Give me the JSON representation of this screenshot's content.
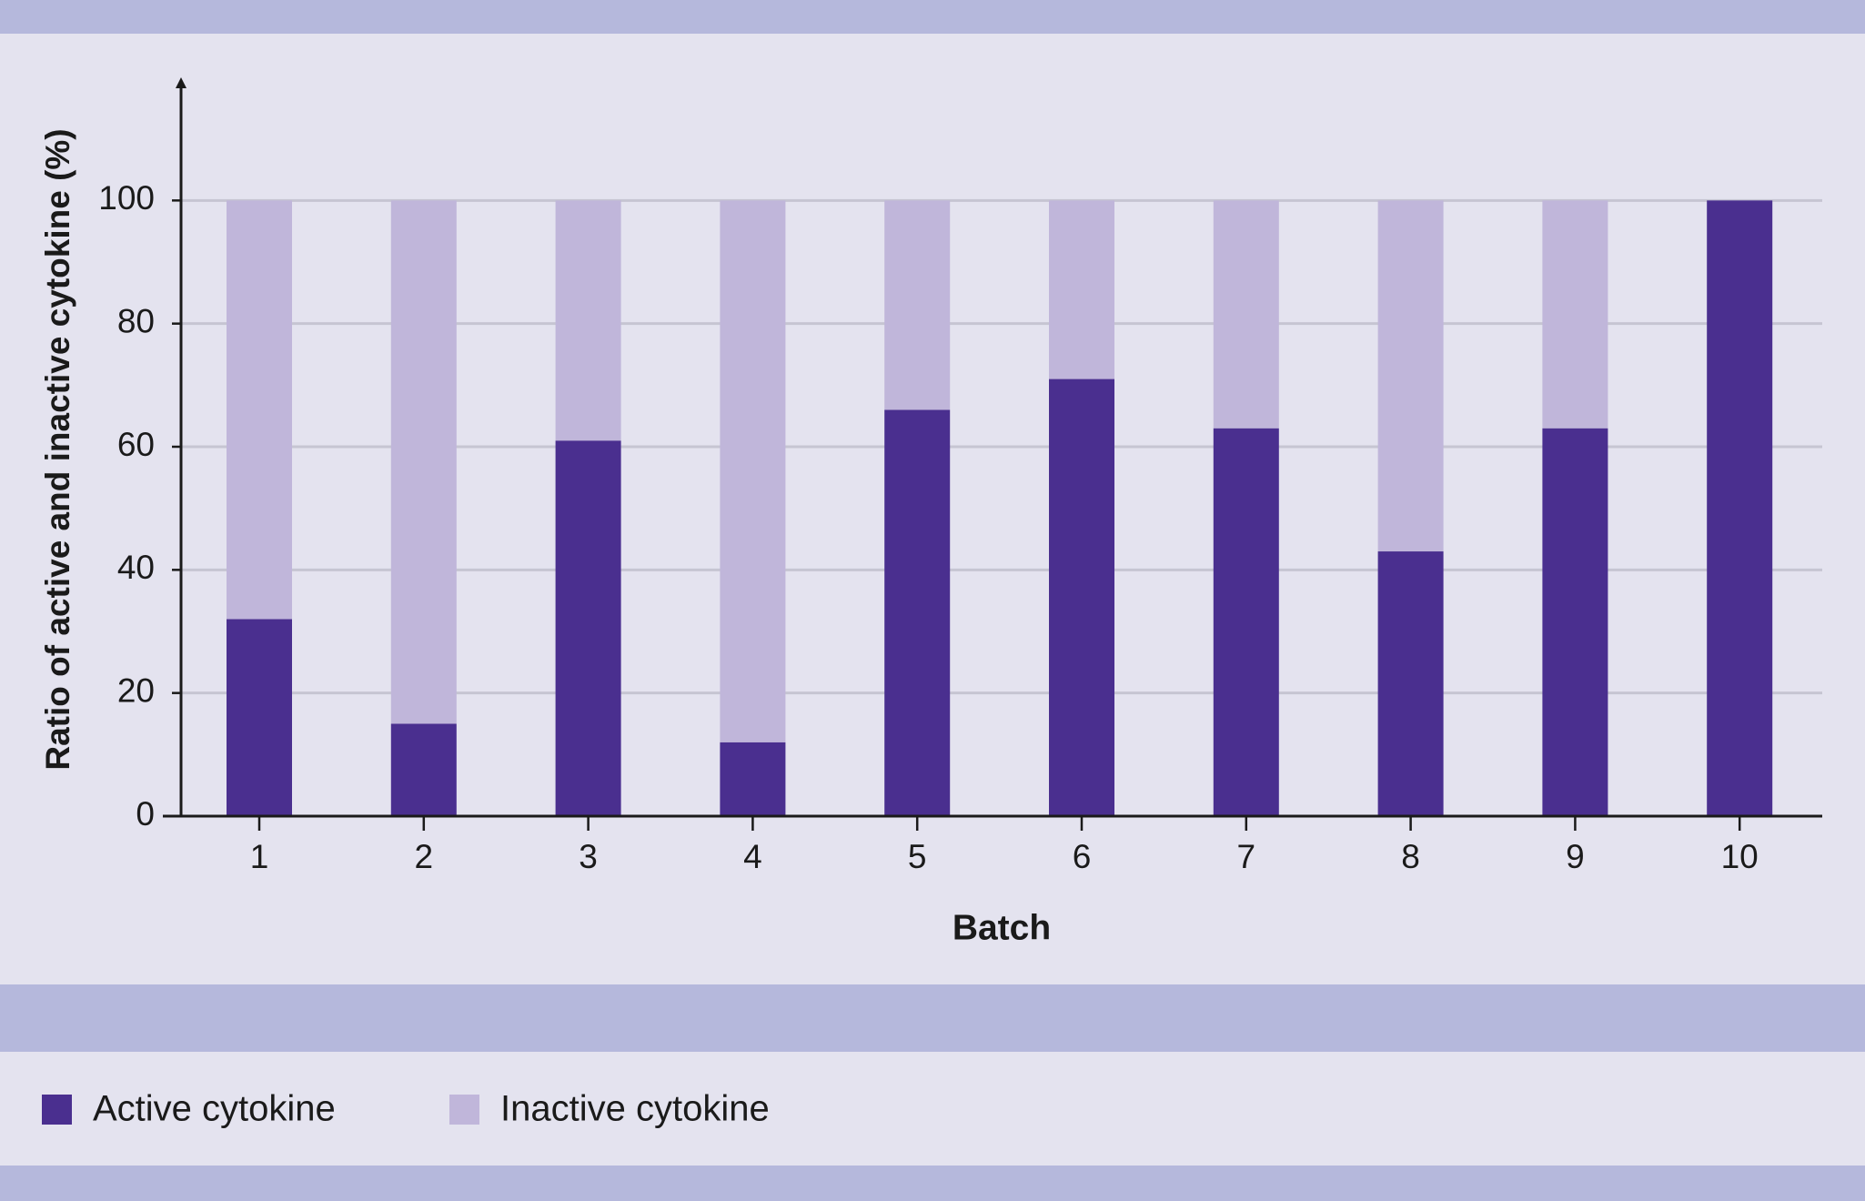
{
  "chart_data": {
    "type": "bar",
    "stacked": true,
    "x_label": "Batch",
    "y_label": "Ratio of active and inactive cytokine (%)",
    "categories": [
      "1",
      "2",
      "3",
      "4",
      "5",
      "6",
      "7",
      "8",
      "9",
      "10"
    ],
    "series": [
      {
        "name": "Active cytokine",
        "color": "#4a2f8f",
        "values": [
          32,
          15,
          61,
          12,
          66,
          71,
          63,
          43,
          63,
          100
        ]
      },
      {
        "name": "Inactive cytokine",
        "color": "#c0b6da",
        "values": [
          68,
          85,
          39,
          88,
          34,
          29,
          37,
          57,
          37,
          0
        ]
      }
    ],
    "ylim": [
      0,
      120
    ],
    "yticks": [
      0,
      20,
      40,
      60,
      80,
      100
    ],
    "grid": true,
    "legend": "bottom"
  }
}
